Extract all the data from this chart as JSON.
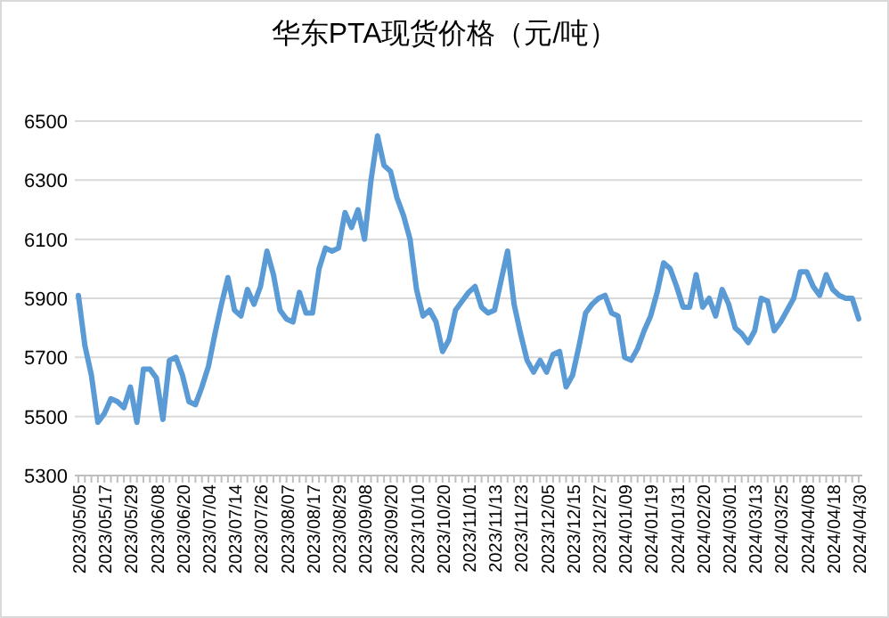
{
  "chart_data": {
    "type": "line",
    "title": "华东PTA现货价格（元/吨）",
    "categories": [
      "2023/05/05",
      null,
      null,
      null,
      "2023/05/17",
      null,
      null,
      null,
      "2023/05/29",
      null,
      null,
      null,
      "2023/06/08",
      null,
      null,
      null,
      "2023/06/20",
      null,
      null,
      null,
      "2023/07/04",
      null,
      null,
      null,
      "2023/07/14",
      null,
      null,
      null,
      "2023/07/26",
      null,
      null,
      null,
      "2023/08/07",
      null,
      null,
      null,
      "2023/08/17",
      null,
      null,
      null,
      "2023/08/29",
      null,
      null,
      null,
      "2023/09/08",
      null,
      null,
      null,
      "2023/09/20",
      null,
      null,
      null,
      "2023/10/10",
      null,
      null,
      null,
      "2023/10/20",
      null,
      null,
      null,
      "2023/11/01",
      null,
      null,
      null,
      "2023/11/13",
      null,
      null,
      null,
      "2023/11/23",
      null,
      null,
      null,
      "2023/12/05",
      null,
      null,
      null,
      "2023/12/15",
      null,
      null,
      null,
      "2023/12/27",
      null,
      null,
      null,
      "2024/01/09",
      null,
      null,
      null,
      "2024/01/19",
      null,
      null,
      null,
      "2024/01/31",
      null,
      null,
      null,
      "2024/02/20",
      null,
      null,
      null,
      "2024/03/01",
      null,
      null,
      null,
      "2024/03/13",
      null,
      null,
      null,
      "2024/03/25",
      null,
      null,
      null,
      "2024/04/08",
      null,
      null,
      null,
      "2024/04/18",
      null,
      null,
      null,
      "2024/04/30"
    ],
    "series": [
      {
        "color": "#5b9bd5",
        "values": [
          5910,
          5740,
          5640,
          5480,
          5510,
          5560,
          5550,
          5530,
          5600,
          5480,
          5660,
          5660,
          5630,
          5490,
          5690,
          5700,
          5640,
          5550,
          5540,
          5600,
          5670,
          5780,
          5880,
          5970,
          5860,
          5840,
          5930,
          5880,
          5940,
          6060,
          5980,
          5860,
          5830,
          5820,
          5920,
          5850,
          5850,
          6000,
          6070,
          6060,
          6070,
          6190,
          6140,
          6200,
          6100,
          6300,
          6450,
          6350,
          6330,
          6240,
          6180,
          6100,
          5930,
          5840,
          5860,
          5820,
          5720,
          5760,
          5860,
          5890,
          5920,
          5940,
          5870,
          5850,
          5860,
          5960,
          6060,
          5880,
          5780,
          5690,
          5650,
          5690,
          5650,
          5710,
          5720,
          5600,
          5640,
          5740,
          5850,
          5880,
          5900,
          5910,
          5850,
          5840,
          5700,
          5690,
          5730,
          5790,
          5840,
          5920,
          6020,
          6000,
          5940,
          5870,
          5870,
          5980,
          5870,
          5900,
          5840,
          5930,
          5880,
          5800,
          5780,
          5750,
          5790,
          5900,
          5890,
          5790,
          5820,
          5860,
          5900,
          5990,
          5990,
          5940,
          5910,
          5980,
          5930,
          5910,
          5900,
          5900,
          5830
        ]
      }
    ],
    "ylim": [
      5300,
      6500
    ],
    "yticks": [
      5300,
      5500,
      5700,
      5900,
      6100,
      6300,
      6500
    ],
    "grid": "y",
    "marker": "none",
    "line_style": "solid"
  }
}
